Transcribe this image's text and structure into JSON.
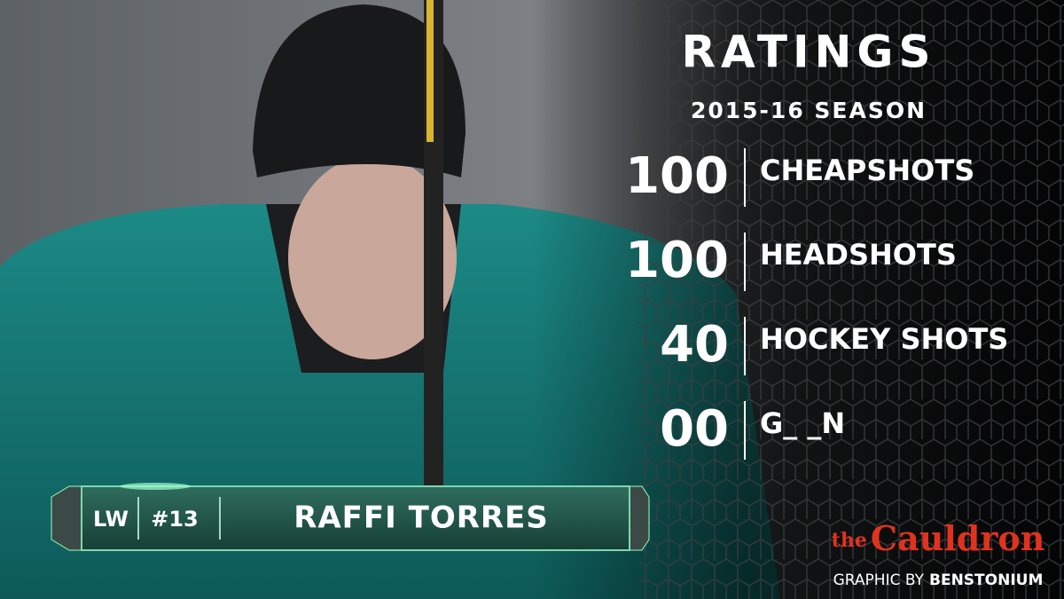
{
  "ratings": {
    "title": "RATINGS",
    "season": "2015-16 SEASON",
    "stats": [
      {
        "value": "100",
        "label": "CHEAPSHOTS"
      },
      {
        "value": "100",
        "label": "HEADSHOTS"
      },
      {
        "value": "40",
        "label": "HOCKEY SHOTS"
      },
      {
        "value": "00",
        "label": "G_ _N"
      }
    ]
  },
  "player": {
    "position": "LW",
    "number": "#13",
    "name": "RAFFI TORRES"
  },
  "brand": {
    "prefix": "the",
    "name": "Cauldron"
  },
  "credit": {
    "label": "GRAPHIC BY",
    "name": "BENSTONIUM"
  }
}
